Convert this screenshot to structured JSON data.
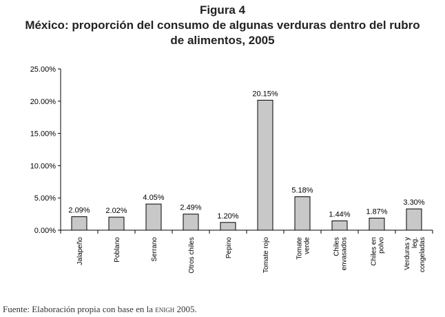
{
  "figure_label": "Figura 4",
  "title_line1": "México: proporción del consumo de algunas verduras dentro del rubro",
  "title_line2": "de alimentos, 2005",
  "source": {
    "prefix": "Fuente: Elaboración propia con base en la ",
    "acronym": "enigh",
    "suffix": " 2005."
  },
  "chart_data": {
    "type": "bar",
    "title": "México: proporción del consumo de algunas verduras dentro del rubro de alimentos, 2005",
    "categories": [
      "Jalapeño",
      "Poblano",
      "Serrano",
      "Otros chiles",
      "Pepino",
      "Tomate rojo",
      "Tomate verde",
      "Chiles envasados",
      "Chiles en polvo",
      "Verduras y leg. congeladas"
    ],
    "category_label_lines": [
      [
        "Jalapeño"
      ],
      [
        "Poblano"
      ],
      [
        "Serrano"
      ],
      [
        "Otros chiles"
      ],
      [
        "Pepino"
      ],
      [
        "Tomate rojo"
      ],
      [
        "Tomate",
        "verde"
      ],
      [
        "Chiles",
        "envasados"
      ],
      [
        "Chiles en",
        "polvo"
      ],
      [
        "Verduras y",
        "leg.",
        "congeladas"
      ]
    ],
    "values": [
      2.09,
      2.02,
      4.05,
      2.49,
      1.2,
      20.15,
      5.18,
      1.44,
      1.87,
      3.3
    ],
    "value_labels": [
      "2.09%",
      "2.02%",
      "4.05%",
      "2.49%",
      "1.20%",
      "20.15%",
      "5.18%",
      "1.44%",
      "1.87%",
      "3.30%"
    ],
    "y_ticks": [
      0,
      5,
      10,
      15,
      20,
      25
    ],
    "y_tick_labels": [
      "0.00%",
      "5.00%",
      "10.00%",
      "15.00%",
      "20.00%",
      "25.00%"
    ],
    "ylim": [
      0,
      25
    ],
    "grid": false,
    "bar_color": "#c8c8c8",
    "bar_edge_color": "#000000"
  }
}
